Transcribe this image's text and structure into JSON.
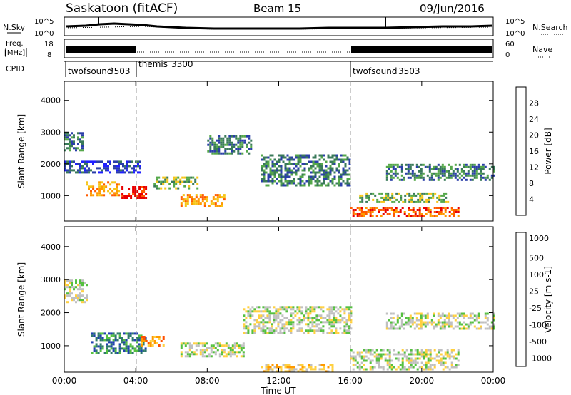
{
  "header": {
    "station": "Saskatoon (fitACF)",
    "beam": "Beam 15",
    "date": "09/Jun/2016"
  },
  "noise_panel": {
    "left_label": "N.Sky",
    "right_label": "N.Search",
    "left_ticks": [
      "10^5",
      "10^0"
    ],
    "right_ticks": [
      "10^5",
      "10^0"
    ]
  },
  "freq_panel": {
    "left_label_1": "Freq.",
    "left_label_2": "[MHz]",
    "left_ticks": [
      "18",
      "8"
    ],
    "right_ticks": [
      "60",
      "0"
    ],
    "right_label": "Nave"
  },
  "cpid_panel": {
    "label": "CPID",
    "modes": [
      {
        "name": "twofsound",
        "id": "3503",
        "start_hour": 0
      },
      {
        "name": "themis",
        "id": "3300",
        "start_hour": 4
      },
      {
        "name": "twofsound",
        "id": "3503",
        "start_hour": 16
      }
    ]
  },
  "colors": {
    "power": [
      "#1f1fff",
      "#2a3ea8",
      "#3a7a5a",
      "#55a84a",
      "#f5c518",
      "#ff9a00",
      "#ff5a00",
      "#e80000"
    ],
    "velocity": [
      "#2040b0",
      "#2e7a6a",
      "#55c040",
      "#c0c0c0",
      "#ffd040",
      "#ff9a00",
      "#ff5000",
      "#e00000"
    ]
  },
  "chart_data": [
    {
      "type": "heatmap",
      "name": "power",
      "ylabel": "Slant Range [km]",
      "xlabel": "",
      "yticks": [
        1000,
        2000,
        3000,
        4000
      ],
      "ylim": [
        200,
        4600
      ],
      "xlim": [
        0,
        24
      ],
      "colorbar": {
        "label": "Power [dB]",
        "ticks": [
          "4",
          "8",
          "12",
          "16",
          "20",
          "24",
          "28"
        ]
      },
      "regions": [
        {
          "t0": 0.0,
          "t1": 1.0,
          "r0": 2450,
          "r1": 3000,
          "level": 2
        },
        {
          "t0": 0.0,
          "t1": 4.3,
          "r0": 1700,
          "r1": 2100,
          "level": 1
        },
        {
          "t0": 1.2,
          "t1": 3.0,
          "r0": 1000,
          "r1": 1450,
          "level": 5
        },
        {
          "t0": 3.2,
          "t1": 4.6,
          "r0": 900,
          "r1": 1300,
          "level": 7
        },
        {
          "t0": 5.0,
          "t1": 7.5,
          "r0": 1200,
          "r1": 1600,
          "level": 3
        },
        {
          "t0": 6.5,
          "t1": 9.0,
          "r0": 700,
          "r1": 1050,
          "level": 5
        },
        {
          "t0": 8.0,
          "t1": 10.5,
          "r0": 2300,
          "r1": 2900,
          "level": 2
        },
        {
          "t0": 11.0,
          "t1": 16.0,
          "r0": 1300,
          "r1": 2300,
          "level": 2
        },
        {
          "t0": 16.0,
          "t1": 22.0,
          "r0": 350,
          "r1": 650,
          "level": 6
        },
        {
          "t0": 16.5,
          "t1": 21.5,
          "r0": 800,
          "r1": 1100,
          "level": 3
        },
        {
          "t0": 18.0,
          "t1": 24.0,
          "r0": 1500,
          "r1": 2000,
          "level": 2
        }
      ]
    },
    {
      "type": "heatmap",
      "name": "velocity",
      "ylabel": "Slant Range [km]",
      "xlabel": "Time UT",
      "yticks": [
        1000,
        2000,
        3000,
        4000
      ],
      "ylim": [
        200,
        4600
      ],
      "xlim": [
        0,
        24
      ],
      "xticks": [
        "00:00",
        "04:00",
        "08:00",
        "12:00",
        "16:00",
        "20:00",
        "00:00"
      ],
      "colorbar": {
        "label": "Velocity [m s-1]",
        "ticks": [
          "1000",
          "500",
          "100",
          "25",
          "-25",
          "-100",
          "-500",
          "-1000"
        ]
      },
      "regions": [
        {
          "t0": 0.0,
          "t1": 1.2,
          "r0": 2300,
          "r1": 3000,
          "level": 3
        },
        {
          "t0": 1.5,
          "t1": 4.5,
          "r0": 800,
          "r1": 1400,
          "level": 1
        },
        {
          "t0": 4.3,
          "t1": 5.5,
          "r0": 1000,
          "r1": 1300,
          "level": 5
        },
        {
          "t0": 6.5,
          "t1": 10.0,
          "r0": 700,
          "r1": 1100,
          "level": 3
        },
        {
          "t0": 10.0,
          "t1": 16.0,
          "r0": 1400,
          "r1": 2200,
          "level": 3
        },
        {
          "t0": 16.0,
          "t1": 22.0,
          "r0": 300,
          "r1": 900,
          "level": 3
        },
        {
          "t0": 18.0,
          "t1": 24.0,
          "r0": 1500,
          "r1": 2000,
          "level": 3
        },
        {
          "t0": 11.0,
          "t1": 15.0,
          "r0": 250,
          "r1": 450,
          "level": 4
        }
      ]
    }
  ]
}
